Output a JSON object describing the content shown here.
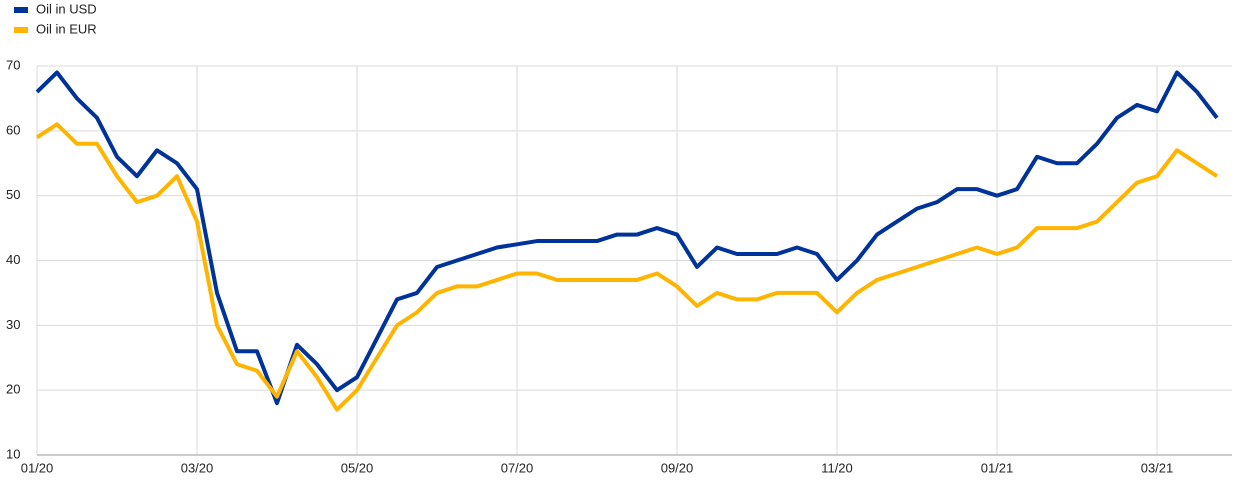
{
  "chart_data": {
    "type": "line",
    "categories": [
      "01/20",
      null,
      null,
      null,
      null,
      null,
      null,
      null,
      "03/20",
      null,
      null,
      null,
      null,
      null,
      null,
      null,
      "05/20",
      null,
      null,
      null,
      null,
      null,
      null,
      null,
      "07/20",
      null,
      null,
      null,
      null,
      null,
      null,
      null,
      "09/20",
      null,
      null,
      null,
      null,
      null,
      null,
      null,
      "11/20",
      null,
      null,
      null,
      null,
      null,
      null,
      null,
      "01/21",
      null,
      null,
      null,
      null,
      null,
      null,
      null,
      "03/21",
      null,
      null,
      null
    ],
    "series": [
      {
        "name": "Oil in USD",
        "color": "#003399",
        "values": [
          66,
          69,
          65,
          62,
          56,
          53,
          57,
          55,
          51,
          35,
          26,
          26,
          18,
          27,
          24,
          20,
          22,
          28,
          34,
          35,
          39,
          40,
          41,
          42,
          42.5,
          43,
          43,
          43,
          43,
          44,
          44,
          45,
          44,
          39,
          42,
          41,
          41,
          41,
          42,
          41,
          37,
          40,
          44,
          46,
          48,
          49,
          51,
          51,
          50,
          51,
          56,
          55,
          55,
          58,
          62,
          64,
          63,
          69,
          66,
          62
        ]
      },
      {
        "name": "Oil in EUR",
        "color": "#ffb400",
        "values": [
          59,
          61,
          58,
          58,
          53,
          49,
          50,
          53,
          46,
          30,
          24,
          23,
          19,
          26,
          22,
          17,
          20,
          25,
          30,
          32,
          35,
          36,
          36,
          37,
          38,
          38,
          37,
          37,
          37,
          37,
          37,
          38,
          36,
          33,
          35,
          34,
          34,
          35,
          35,
          35,
          32,
          35,
          37,
          38,
          39,
          40,
          41,
          42,
          41,
          42,
          45,
          45,
          45,
          46,
          49,
          52,
          53,
          57,
          55,
          53
        ]
      }
    ],
    "ylim": [
      10,
      70
    ],
    "yticks": [
      10,
      20,
      30,
      40,
      50,
      60,
      70
    ],
    "grid": true,
    "legend": "top-left"
  }
}
